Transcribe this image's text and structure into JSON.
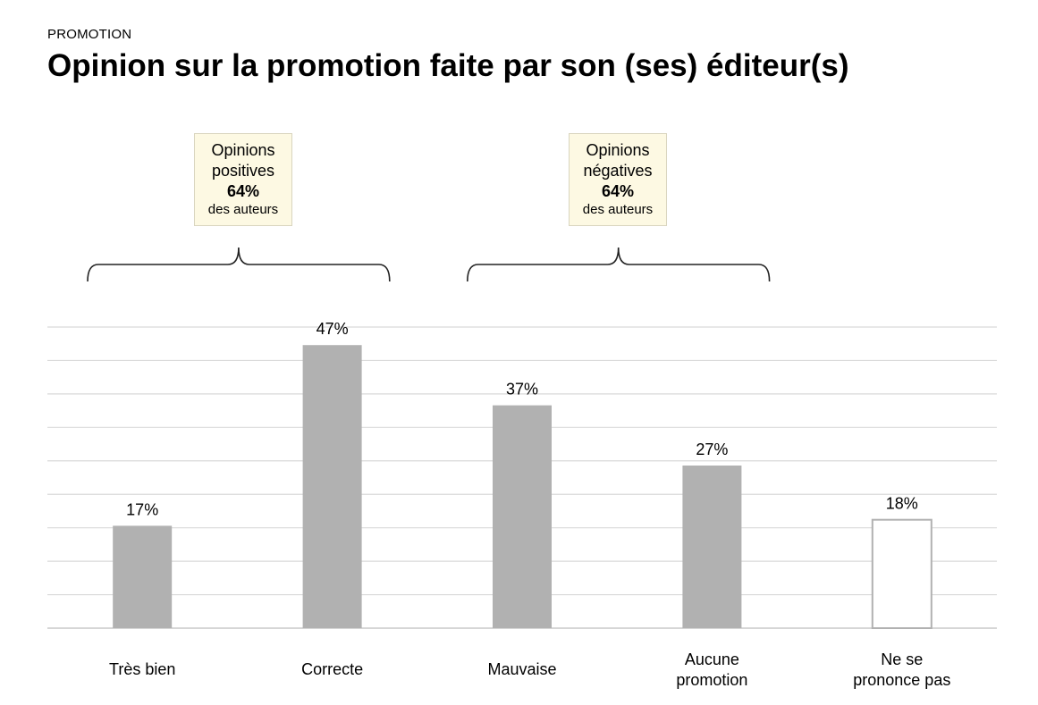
{
  "header": {
    "overline": "PROMOTION",
    "title": "Opinion sur la promotion faite par son (ses) éditeur(s)"
  },
  "callouts": [
    {
      "line1": "Opinions",
      "line2": "positives",
      "value": "64%",
      "sub": "des auteurs"
    },
    {
      "line1": "Opinions",
      "line2": "négatives",
      "value": "64%",
      "sub": "des auteurs"
    }
  ],
  "chart_data": {
    "type": "bar",
    "title": "Opinion sur la promotion faite par son (ses) éditeur(s)",
    "xlabel": "",
    "ylabel": "",
    "ylim": [
      0,
      50
    ],
    "grid": true,
    "categories": [
      [
        "Très bien"
      ],
      [
        "Correcte"
      ],
      [
        "Mauvaise"
      ],
      [
        "Aucune",
        "promotion"
      ],
      [
        "Ne se",
        "prononce pas"
      ]
    ],
    "values": [
      17,
      47,
      37,
      27,
      18
    ],
    "labels": [
      "17%",
      "47%",
      "37%",
      "27%",
      "18%"
    ],
    "styles": [
      "filled",
      "filled",
      "filled",
      "filled",
      "outline"
    ],
    "groups": [
      {
        "callout": 0,
        "from": 0,
        "to": 1
      },
      {
        "callout": 1,
        "from": 2,
        "to": 3
      }
    ],
    "colors": {
      "bar": "#b1b1b1",
      "outline": "#b1b1b1",
      "grid": "#d9d9d9",
      "brace": "#222222"
    }
  }
}
